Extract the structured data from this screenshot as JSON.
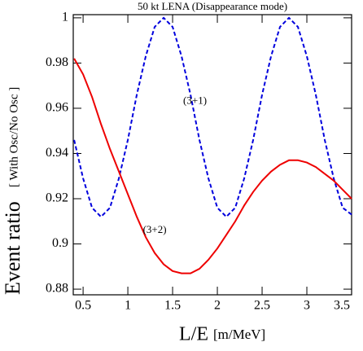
{
  "chart_data": {
    "type": "line",
    "title": "50 kt LENA (Disappearance mode)",
    "x_label": "L/E",
    "x_label_unit": "[m/MeV]",
    "y_label": "Event ratio",
    "y_label_unit": "[ With Osc/No Osc ]",
    "x": [
      0.4,
      0.5,
      0.6,
      0.7,
      0.8,
      0.9,
      1.0,
      1.1,
      1.2,
      1.3,
      1.4,
      1.5,
      1.6,
      1.7,
      1.8,
      1.9,
      2.0,
      2.1,
      2.2,
      2.3,
      2.4,
      2.5,
      2.6,
      2.7,
      2.8,
      2.9,
      3.0,
      3.1,
      3.2,
      3.3,
      3.4,
      3.5
    ],
    "series": [
      {
        "name": "(3+1)",
        "color": "#0000dd",
        "dashed": true,
        "values": [
          0.946,
          0.929,
          0.916,
          0.912,
          0.916,
          0.929,
          0.946,
          0.966,
          0.983,
          0.996,
          1.0,
          0.996,
          0.983,
          0.966,
          0.946,
          0.929,
          0.916,
          0.912,
          0.916,
          0.929,
          0.946,
          0.966,
          0.983,
          0.996,
          1.0,
          0.996,
          0.983,
          0.966,
          0.946,
          0.929,
          0.916,
          0.913
        ]
      },
      {
        "name": "(3+2)",
        "color": "#ee0000",
        "dashed": false,
        "values": [
          0.982,
          0.975,
          0.965,
          0.953,
          0.942,
          0.932,
          0.922,
          0.912,
          0.903,
          0.896,
          0.891,
          0.888,
          0.887,
          0.887,
          0.889,
          0.893,
          0.898,
          0.904,
          0.91,
          0.917,
          0.923,
          0.928,
          0.932,
          0.935,
          0.937,
          0.937,
          0.936,
          0.934,
          0.931,
          0.928,
          0.924,
          0.92
        ]
      }
    ],
    "xlim": [
      0.39,
      3.5
    ],
    "ylim": [
      0.8775,
      1.0014
    ],
    "xticks": [
      0.5,
      1,
      1.5,
      2,
      2.5,
      3,
      3.5
    ],
    "yticks": [
      0.88,
      0.9,
      0.92,
      0.94,
      0.96,
      0.98,
      1
    ]
  }
}
